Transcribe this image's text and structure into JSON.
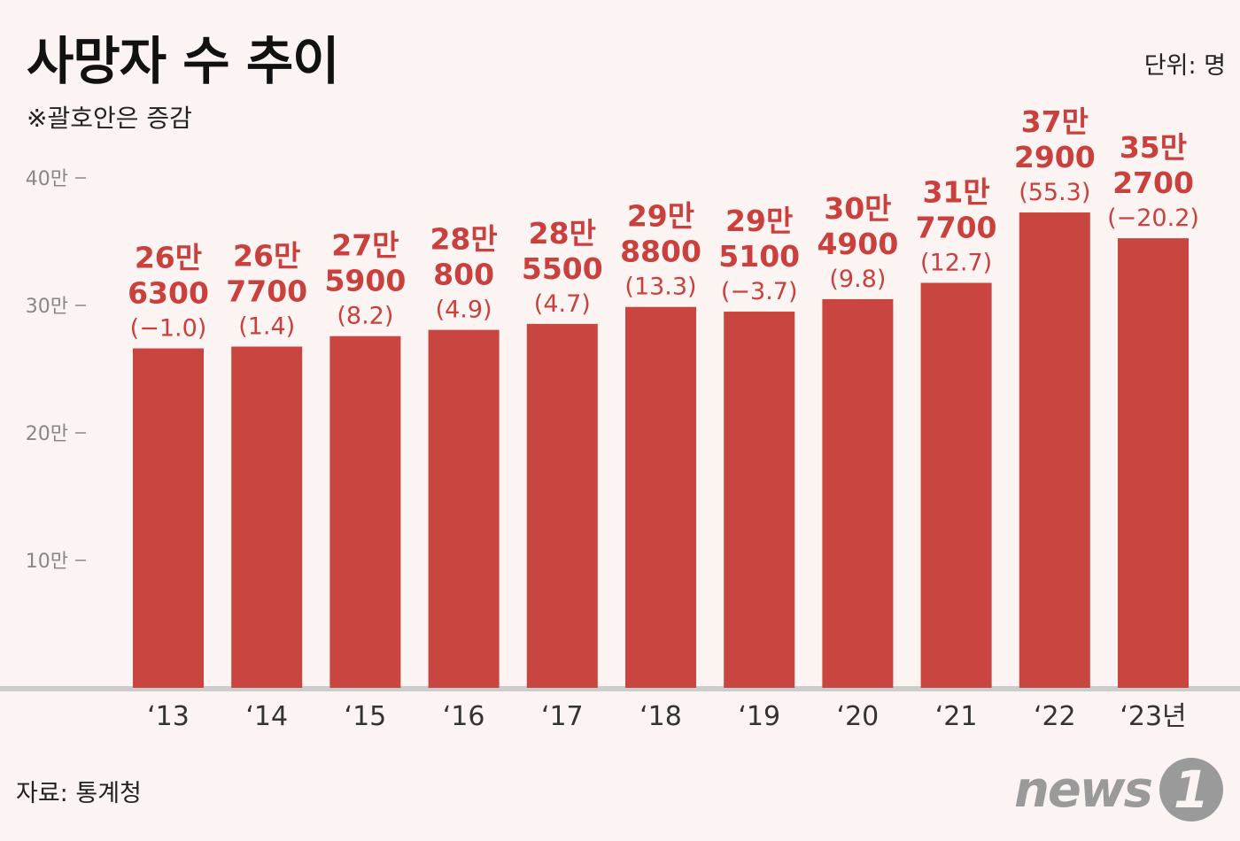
{
  "header": {
    "title": "사망자 수 추이",
    "note": "※괄호안은 증감",
    "unit": "단위: 명"
  },
  "footer": {
    "source": "자료: 통계청",
    "logo_text": "news",
    "logo_mark": "1"
  },
  "colors": {
    "bar": "#c9453f",
    "label": "#c9403c",
    "baseline": "#cccccc"
  },
  "chart_data": {
    "type": "bar",
    "categories": [
      "‘13",
      "‘14",
      "‘15",
      "‘16",
      "‘17",
      "‘18",
      "‘19",
      "‘20",
      "‘21",
      "‘22",
      "‘23년"
    ],
    "values": [
      266300,
      267700,
      275900,
      280800,
      285500,
      298800,
      295100,
      304900,
      317700,
      372900,
      352700
    ],
    "value_labels": [
      [
        "26만",
        "6300"
      ],
      [
        "26만",
        "7700"
      ],
      [
        "27만",
        "5900"
      ],
      [
        "28만",
        "800"
      ],
      [
        "28만",
        "5500"
      ],
      [
        "29만",
        "8800"
      ],
      [
        "29만",
        "5100"
      ],
      [
        "30만",
        "4900"
      ],
      [
        "31만",
        "7700"
      ],
      [
        "37만",
        "2900"
      ],
      [
        "35만",
        "2700"
      ]
    ],
    "change_labels": [
      "(−1.0)",
      "(1.4)",
      "(8.2)",
      "(4.9)",
      "(4.7)",
      "(13.3)",
      "(−3.7)",
      "(9.8)",
      "(12.7)",
      "(55.3)",
      "(−20.2)"
    ],
    "yticks": [
      100000,
      200000,
      300000,
      400000
    ],
    "ytick_labels": [
      "10만",
      "20만",
      "30만",
      "40만"
    ],
    "ylim": [
      0,
      400000
    ],
    "grid": false
  }
}
